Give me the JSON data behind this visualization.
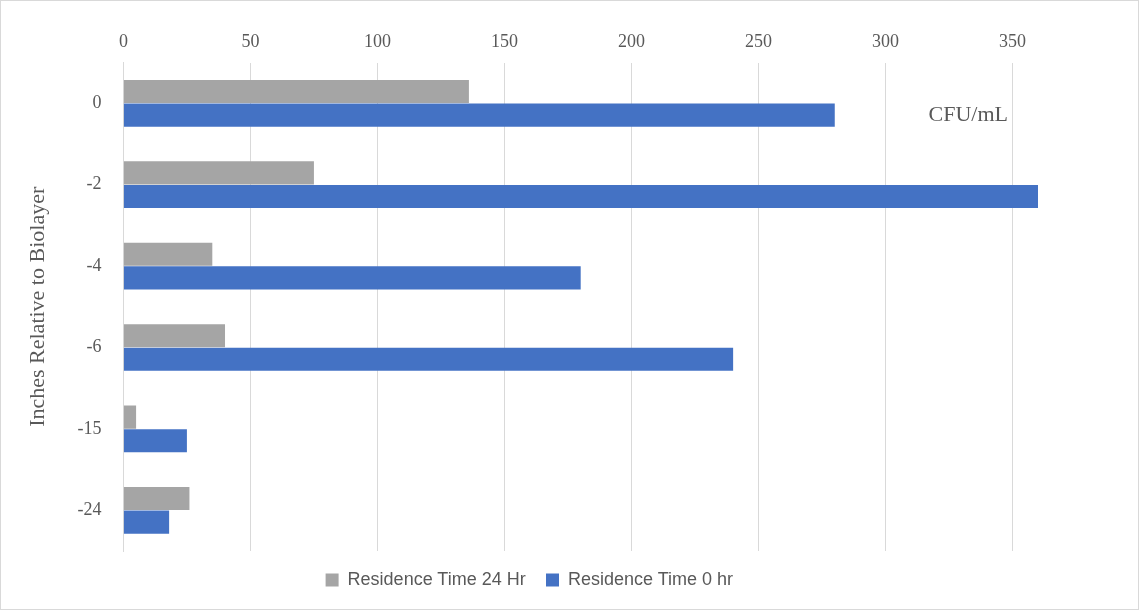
{
  "chart_data": {
    "type": "bar",
    "orientation": "horizontal",
    "xlabel": "CFU/mL",
    "ylabel": "Inches Relative to Biolayer",
    "categories": [
      "0",
      "-2",
      "-4",
      "-6",
      "-15",
      "-24"
    ],
    "series": [
      {
        "name": "Residence Time 24 Hr",
        "color": "#a5a5a5",
        "values": [
          136,
          75,
          35,
          40,
          5,
          26
        ]
      },
      {
        "name": "Residence Time 0 hr",
        "color": "#4472c4",
        "values": [
          280,
          360,
          180,
          240,
          25,
          18
        ]
      }
    ],
    "xlim": [
      0,
      360
    ],
    "xticks": [
      0,
      50,
      100,
      150,
      200,
      250,
      300,
      350
    ],
    "grid": "x",
    "legend": "bottom"
  }
}
